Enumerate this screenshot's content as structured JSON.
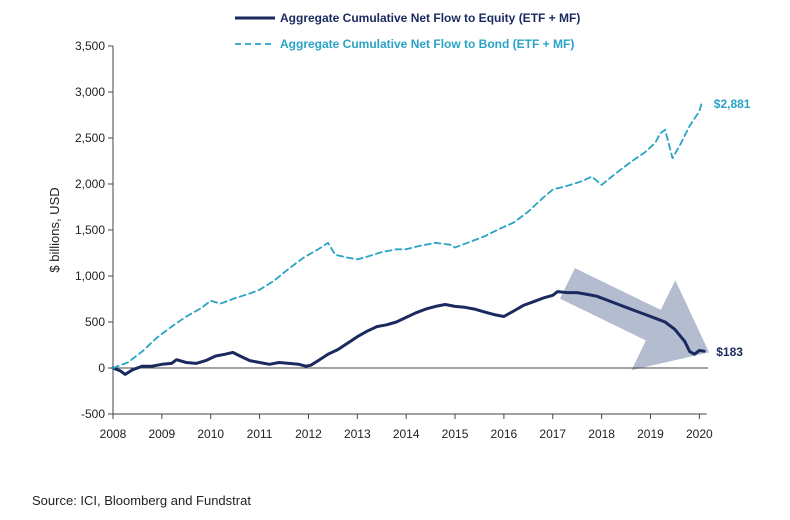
{
  "chart_data": {
    "type": "line",
    "ylabel": "$ billions, USD",
    "ylim": [
      -500,
      3500
    ],
    "yticks": [
      -500,
      0,
      500,
      1000,
      1500,
      2000,
      2500,
      3000,
      3500
    ],
    "ytick_labels": [
      "-500",
      "0",
      "500",
      "1,000",
      "1,500",
      "2,000",
      "2,500",
      "3,000",
      "3,500"
    ],
    "xlim": [
      2008,
      2020.3
    ],
    "xticks": [
      2008,
      2009,
      2010,
      2011,
      2012,
      2013,
      2014,
      2015,
      2016,
      2017,
      2018,
      2019,
      2020
    ],
    "xtick_labels": [
      "2008",
      "2009",
      "2010",
      "2011",
      "2012",
      "2013",
      "2014",
      "2015",
      "2016",
      "2017",
      "2018",
      "2019",
      "2020"
    ],
    "grid": false,
    "legend_position": "top-center",
    "series": [
      {
        "name": "Aggregate Cumulative Net Flow to Equity (ETF + MF)",
        "color": "#1a2a5e",
        "style": "solid",
        "end_label": "$183",
        "x": [
          2008.0,
          2008.15,
          2008.25,
          2008.4,
          2008.6,
          2008.8,
          2009.0,
          2009.2,
          2009.3,
          2009.5,
          2009.7,
          2009.9,
          2010.1,
          2010.3,
          2010.45,
          2010.6,
          2010.8,
          2011.0,
          2011.2,
          2011.4,
          2011.6,
          2011.8,
          2011.95,
          2012.05,
          2012.2,
          2012.4,
          2012.6,
          2012.8,
          2013.0,
          2013.2,
          2013.4,
          2013.6,
          2013.8,
          2014.0,
          2014.2,
          2014.4,
          2014.6,
          2014.8,
          2015.0,
          2015.2,
          2015.4,
          2015.6,
          2015.8,
          2016.0,
          2016.2,
          2016.4,
          2016.6,
          2016.8,
          2017.0,
          2017.1,
          2017.3,
          2017.5,
          2017.7,
          2017.9,
          2018.1,
          2018.3,
          2018.5,
          2018.7,
          2018.9,
          2019.1,
          2019.3,
          2019.5,
          2019.7,
          2019.8,
          2019.9,
          2020.0,
          2020.1
        ],
        "values": [
          0,
          -30,
          -70,
          -20,
          20,
          20,
          40,
          50,
          90,
          60,
          50,
          80,
          130,
          150,
          170,
          130,
          80,
          60,
          40,
          60,
          50,
          40,
          20,
          30,
          80,
          150,
          200,
          270,
          340,
          400,
          450,
          470,
          500,
          550,
          600,
          640,
          670,
          690,
          670,
          660,
          640,
          610,
          580,
          560,
          620,
          680,
          720,
          760,
          790,
          830,
          820,
          820,
          800,
          780,
          740,
          700,
          660,
          620,
          580,
          540,
          500,
          420,
          290,
          180,
          150,
          190,
          183
        ]
      },
      {
        "name": "Aggregate Cumulative Net Flow to Bond (ETF + MF)",
        "color": "#29a3c6",
        "style": "dashed",
        "end_label": "$2,881",
        "x": [
          2008.0,
          2008.3,
          2008.6,
          2008.9,
          2009.2,
          2009.5,
          2009.8,
          2010.0,
          2010.2,
          2010.5,
          2010.8,
          2011.0,
          2011.3,
          2011.6,
          2011.9,
          2012.2,
          2012.4,
          2012.55,
          2012.8,
          2013.0,
          2013.2,
          2013.5,
          2013.8,
          2014.0,
          2014.3,
          2014.6,
          2014.9,
          2015.0,
          2015.3,
          2015.6,
          2015.9,
          2016.2,
          2016.5,
          2016.8,
          2017.0,
          2017.3,
          2017.6,
          2017.8,
          2018.0,
          2018.3,
          2018.6,
          2018.9,
          2019.1,
          2019.2,
          2019.3,
          2019.45,
          2019.6,
          2019.8,
          2020.0,
          2020.05
        ],
        "values": [
          0,
          60,
          180,
          330,
          450,
          560,
          650,
          730,
          700,
          760,
          810,
          850,
          950,
          1080,
          1200,
          1290,
          1360,
          1230,
          1200,
          1180,
          1210,
          1260,
          1290,
          1290,
          1330,
          1360,
          1340,
          1310,
          1370,
          1430,
          1510,
          1580,
          1700,
          1850,
          1940,
          1980,
          2030,
          2080,
          1990,
          2120,
          2240,
          2350,
          2450,
          2550,
          2590,
          2280,
          2420,
          2630,
          2790,
          2881
        ]
      }
    ],
    "annotation": {
      "shape": "arrow",
      "direction": "down-right",
      "from": [
        2017.3,
        920
      ],
      "to": [
        2020.2,
        170
      ],
      "color": "#a7b1c8"
    }
  },
  "source_text": "Source: ICI, Bloomberg and Fundstrat"
}
